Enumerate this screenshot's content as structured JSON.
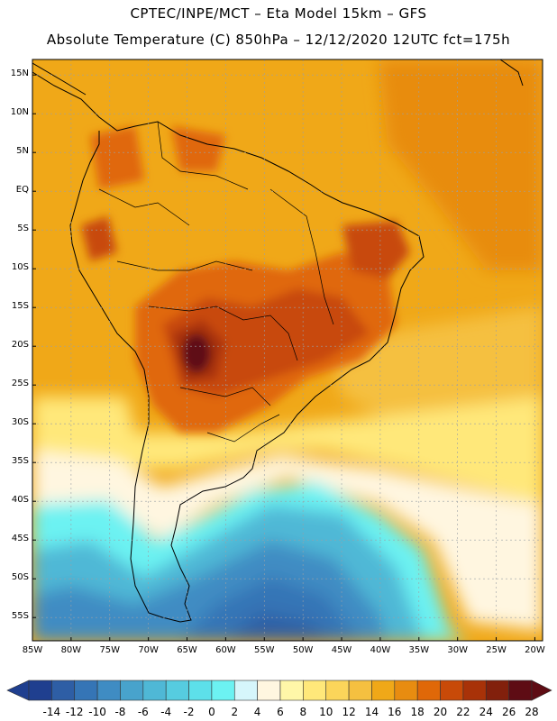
{
  "header": {
    "line1": "CPTEC/INPE/MCT –  Eta Model 15km – GFS",
    "line2": "Absolute Temperature (C) 850hPa – 12/12/2020 12UTC fct=175h"
  },
  "map": {
    "lon_range": [
      -85,
      -19
    ],
    "lat_range": [
      -58,
      17
    ],
    "lat_ticks": [
      "15N",
      "10N",
      "5N",
      "EQ",
      "5S",
      "10S",
      "15S",
      "20S",
      "25S",
      "30S",
      "35S",
      "40S",
      "45S",
      "50S",
      "55S"
    ],
    "lon_ticks": [
      "85W",
      "80W",
      "75W",
      "70W",
      "65W",
      "60W",
      "55W",
      "50W",
      "45W",
      "40W",
      "35W",
      "30W",
      "25W",
      "20W"
    ]
  },
  "colorbar": {
    "labels": [
      "-14",
      "-12",
      "-10",
      "-8",
      "-6",
      "-4",
      "-2",
      "0",
      "2",
      "4",
      "6",
      "8",
      "10",
      "12",
      "14",
      "16",
      "18",
      "20",
      "22",
      "24",
      "26",
      "28"
    ],
    "colors": [
      "#1f3f8f",
      "#2e5ea5",
      "#3575b6",
      "#3f8cc3",
      "#48a3cc",
      "#4fb8d6",
      "#56cce0",
      "#5de0ea",
      "#6cf2f2",
      "#d6f6fb",
      "#fff6e0",
      "#fff7a8",
      "#ffe87a",
      "#fbd55a",
      "#f5c040",
      "#f0a818",
      "#e88c10",
      "#e06808",
      "#c84a08",
      "#a83208",
      "#82200c",
      "#5e0c14"
    ]
  }
}
